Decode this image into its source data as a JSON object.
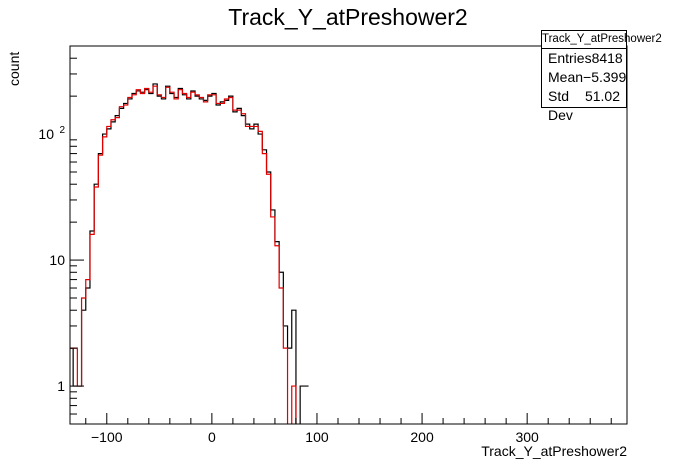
{
  "chart_data": {
    "type": "histogram",
    "title": "Track_Y_atPreshower2",
    "xlabel": "Track_Y_atPreshower2",
    "ylabel": "count",
    "xlim": [
      -135,
      395
    ],
    "ylim": [
      0.5,
      500
    ],
    "yscale": "log",
    "bin_width": 4,
    "x_ticks": [
      -100,
      0,
      100,
      200,
      300
    ],
    "x_tick_labels": [
      "−100",
      "0",
      "100",
      "200",
      "300"
    ],
    "y_ticks": [
      1,
      10,
      100
    ],
    "y_tick_labels": [
      "1",
      "10",
      "10^2"
    ],
    "bin_edges_start": -136,
    "series": [
      {
        "color": "#000000",
        "counts": [
          2,
          1,
          1,
          4,
          6,
          17,
          40,
          70,
          100,
          110,
          125,
          140,
          160,
          175,
          190,
          210,
          220,
          215,
          225,
          210,
          250,
          200,
          190,
          240,
          210,
          195,
          230,
          205,
          190,
          220,
          200,
          190,
          185,
          200,
          210,
          170,
          180,
          185,
          200,
          150,
          160,
          140,
          120,
          110,
          120,
          100,
          75,
          50,
          25,
          14,
          8,
          3,
          2,
          4,
          0,
          1,
          1
        ]
      },
      {
        "color": "#e00000",
        "counts": [
          2,
          2,
          1,
          5,
          7,
          16,
          38,
          68,
          95,
          115,
          130,
          135,
          165,
          170,
          195,
          205,
          225,
          210,
          230,
          215,
          240,
          205,
          195,
          235,
          215,
          190,
          225,
          210,
          195,
          215,
          205,
          195,
          180,
          205,
          205,
          175,
          175,
          190,
          195,
          155,
          155,
          145,
          115,
          115,
          115,
          105,
          70,
          48,
          22,
          13,
          6,
          2,
          0,
          1,
          0,
          0,
          0
        ]
      }
    ],
    "legend": "top-right"
  },
  "stats": {
    "name": "Track_Y_atPreshower2",
    "entries_label": "Entries",
    "entries": "8418",
    "mean_label": "Mean",
    "mean": "−5.399",
    "std_label": "Std Dev",
    "std": "51.02"
  }
}
